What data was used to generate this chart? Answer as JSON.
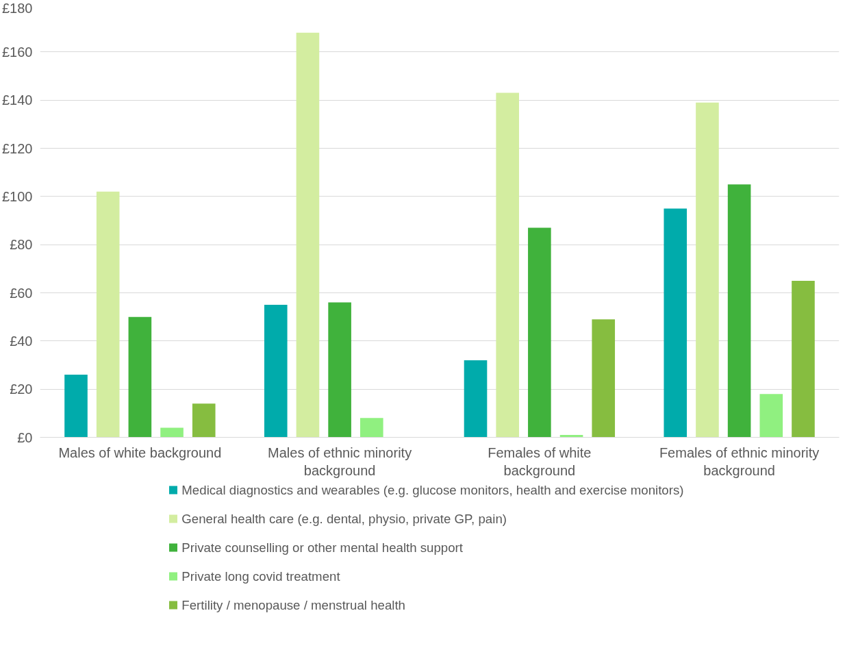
{
  "chart_data": {
    "type": "bar",
    "categories": [
      "Males of white background",
      "Males of ethnic minority background",
      "Females of white background",
      "Females of ethnic minority background"
    ],
    "series": [
      {
        "name": "Medical diagnostics and wearables (e.g. glucose monitors, health and exercise monitors)",
        "color": "#00abab",
        "values": [
          26,
          55,
          32,
          95
        ]
      },
      {
        "name": "General health care (e.g. dental, physio, private GP, pain)",
        "color": "#d3eda0",
        "values": [
          102,
          168,
          143,
          139
        ]
      },
      {
        "name": "Private counselling or other mental health support",
        "color": "#40b23c",
        "values": [
          50,
          56,
          87,
          105
        ]
      },
      {
        "name": "Private long covid treatment",
        "color": "#90f080",
        "values": [
          4,
          8,
          1,
          18
        ]
      },
      {
        "name": "Fertility / menopause / menstrual health",
        "color": "#86bd40",
        "values": [
          14,
          null,
          49,
          65
        ]
      }
    ],
    "ylim": [
      0,
      180
    ],
    "yticks": [
      {
        "value": 0,
        "label": "£0"
      },
      {
        "value": 20,
        "label": "£20"
      },
      {
        "value": 40,
        "label": "£40"
      },
      {
        "value": 60,
        "label": "£60"
      },
      {
        "value": 80,
        "label": "£80"
      },
      {
        "value": 100,
        "label": "£100"
      },
      {
        "value": 120,
        "label": "£120"
      },
      {
        "value": 140,
        "label": "£140"
      },
      {
        "value": 160,
        "label": "£160"
      },
      {
        "value": 180,
        "label": "£180"
      }
    ],
    "grid": "y",
    "legend": "bottom"
  }
}
